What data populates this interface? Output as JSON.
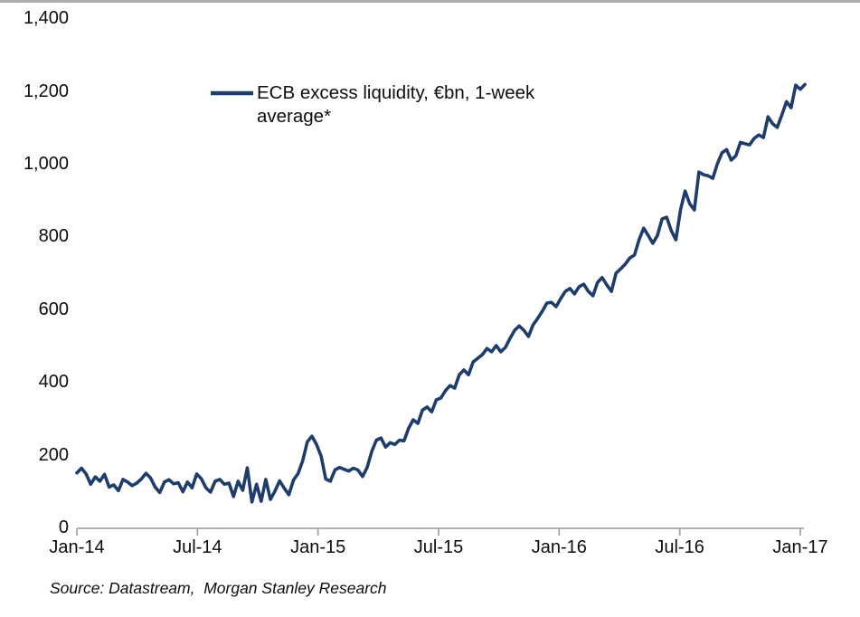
{
  "chart_data": {
    "type": "line",
    "title": "",
    "legend_entries": [
      "ECB excess liquidity, €bn, 1-week average*"
    ],
    "legend_position": "top-left-of-plot",
    "grid": false,
    "x_tick_labels": [
      "Jan-14",
      "Jul-14",
      "Jan-15",
      "Jul-15",
      "Jan-16",
      "Jul-16",
      "Jan-17"
    ],
    "y_tick_labels": [
      "0",
      "200",
      "400",
      "600",
      "800",
      "1,000",
      "1,200",
      "1,400"
    ],
    "ylim": [
      0,
      1400
    ],
    "y_tick_step": 200,
    "x_unit": "weekly observations, Jan-2014 to Jan-2017",
    "series": [
      {
        "name": "ECB excess liquidity, €bn, 1-week average*",
        "color": "#1f3d6b",
        "values": [
          150,
          163,
          147,
          119,
          139,
          127,
          146,
          111,
          117,
          101,
          132,
          125,
          115,
          122,
          133,
          149,
          136,
          111,
          96,
          125,
          131,
          120,
          123,
          98,
          125,
          109,
          147,
          134,
          109,
          97,
          127,
          132,
          119,
          122,
          85,
          127,
          102,
          164,
          70,
          119,
          72,
          132,
          77,
          100,
          128,
          108,
          90,
          130,
          148,
          183,
          235,
          251,
          228,
          196,
          133,
          127,
          158,
          165,
          160,
          155,
          163,
          158,
          140,
          165,
          209,
          240,
          246,
          221,
          233,
          228,
          240,
          238,
          273,
          296,
          286,
          323,
          331,
          318,
          351,
          356,
          376,
          390,
          383,
          420,
          433,
          420,
          455,
          465,
          475,
          492,
          483,
          500,
          483,
          495,
          520,
          542,
          554,
          542,
          525,
          557,
          575,
          594,
          617,
          619,
          607,
          629,
          649,
          657,
          642,
          662,
          669,
          649,
          637,
          674,
          687,
          667,
          649,
          699,
          711,
          724,
          741,
          749,
          791,
          823,
          803,
          781,
          803,
          848,
          853,
          816,
          791,
          873,
          925,
          890,
          873,
          977,
          970,
          967,
          960,
          1000,
          1030,
          1039,
          1010,
          1022,
          1059,
          1055,
          1052,
          1070,
          1079,
          1072,
          1129,
          1110,
          1100,
          1134,
          1171,
          1154,
          1216,
          1205,
          1218
        ]
      }
    ]
  },
  "legend": {
    "label": "ECB excess liquidity, €bn, 1-week\naverage*"
  },
  "source": "Source: Datastream,  Morgan Stanley Research",
  "colors": {
    "line": "#1f3d6b",
    "axis": "#a6a6a6",
    "top_border": "#ababab",
    "text": "#0d0d0d"
  }
}
